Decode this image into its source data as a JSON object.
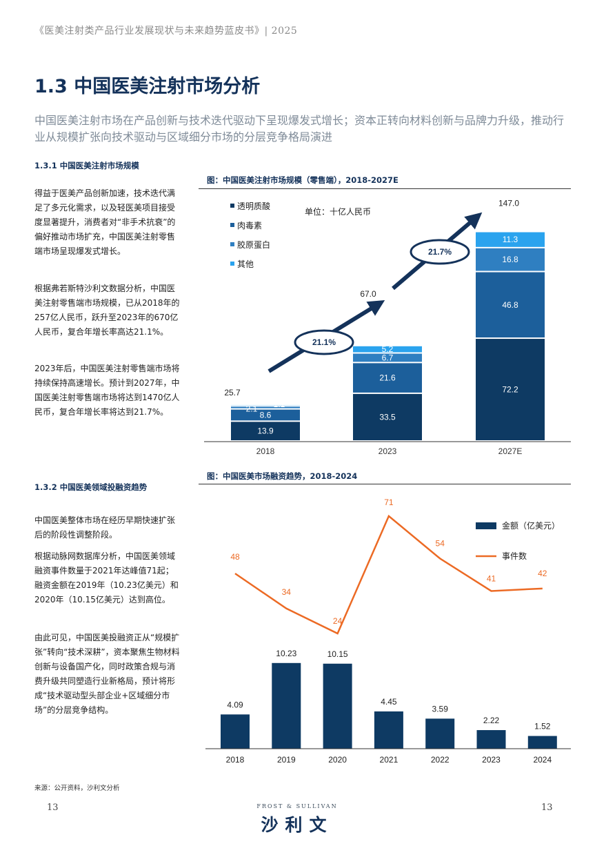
{
  "header": "《医美注射类产品行业发展现状与未来趋势蓝皮书》| 2025",
  "title": "1.3 中国医美注射市场分析",
  "lead": "中国医美注射市场在产品创新与技术迭代驱动下呈现爆发式增长；资本正转向材料创新与品牌力升级，推动行业从规模扩张向技术驱动与区域细分市场的分层竞争格局演进",
  "section1": {
    "heading": "1.3.1 中国医美注射市场规模",
    "paragraphs": [
      "得益于医美产品创新加速，技术迭代满足了多元化需求，以及轻医美项目接受度显著提升，消费者对“非手术抗衰”的偏好推动市场扩充，中国医美注射零售端市场呈现爆发式增长。",
      "根据弗若斯特沙利文数据分析，中国医美注射零售端市场规模，已从2018年的257亿人民币，跃升至2023年的670亿人民币，复合年增长率高达21.1%。",
      "2023年后，中国医美注射零售端市场将持续保持高速增长。预计到2027年，中国医美注射零售端市场将达到1470亿人民币，复合年增长率将达到21.7%。"
    ]
  },
  "section2": {
    "heading": "1.3.2 中国医美领域投融资趋势",
    "paragraphs": [
      "中国医美整体市场在经历早期快速扩张后的阶段性调整阶段。",
      "根据动脉网数据库分析，中国医美领域融资事件数量于2021年达峰值71起；融资金额在2019年（10.23亿美元）和2020年（10.15亿美元）达到高位。",
      "由此可见，中国医美投融资正从“规模扩张”转向“技术深耕”，资本聚焦生物材料创新与设备国产化，同时政策合规与消费升级共同塑造行业新格局，预计将形成“技术驱动型头部企业+区域细分市场”的分层竞争结构。"
    ]
  },
  "chart_data": [
    {
      "type": "bar",
      "stacked": true,
      "title": "图：中国医美注射市场规模（零售端），2018-2027E",
      "unit_label": "单位：十亿人民币",
      "categories": [
        "2018",
        "2023",
        "2027E"
      ],
      "series": [
        {
          "name": "透明质酸",
          "values": [
            13.9,
            33.5,
            72.2
          ],
          "color": "#0e3a63"
        },
        {
          "name": "肉毒素",
          "values": [
            8.6,
            21.6,
            46.8
          ],
          "color": "#1c5f9b"
        },
        {
          "name": "胶原蛋白",
          "values": [
            2.1,
            6.7,
            16.8
          ],
          "color": "#2f7fc1"
        },
        {
          "name": "其他",
          "values": [
            1.1,
            5.2,
            11.3
          ],
          "color": "#2aa3ee"
        }
      ],
      "totals": [
        "25.7",
        "67.0",
        "147.0"
      ],
      "cagr_labels": [
        "21.1%",
        "21.7%"
      ],
      "ylim": [
        0,
        160
      ]
    },
    {
      "type": "bar+line",
      "title": "图：中国医美市场融资趋势，2018-2024",
      "categories": [
        "2018",
        "2019",
        "2020",
        "2021",
        "2022",
        "2023",
        "2024"
      ],
      "series": [
        {
          "name": "金额（亿美元）",
          "type": "bar",
          "values": [
            4.09,
            10.23,
            10.15,
            4.45,
            3.59,
            2.22,
            1.52
          ],
          "labels": [
            "4.09",
            "10.23",
            "10.15",
            "4.45",
            "3.59",
            "2.22",
            "1.52"
          ],
          "color": "#0e3a63"
        },
        {
          "name": "事件数",
          "type": "line",
          "values": [
            48,
            34,
            24,
            71,
            54,
            41,
            42
          ],
          "labels": [
            "48",
            "34",
            "24",
            "71",
            "54",
            "41",
            "42"
          ],
          "color": "#ec6a24"
        }
      ],
      "ylim_bar": [
        0,
        12
      ],
      "ylim_line": [
        0,
        80
      ]
    }
  ],
  "source": "来源：公开资料，沙利文分析",
  "footer": {
    "page_left": "13",
    "page_right": "13",
    "brand_en": "FROST & SULLIVAN",
    "brand_cn": "沙利文"
  }
}
